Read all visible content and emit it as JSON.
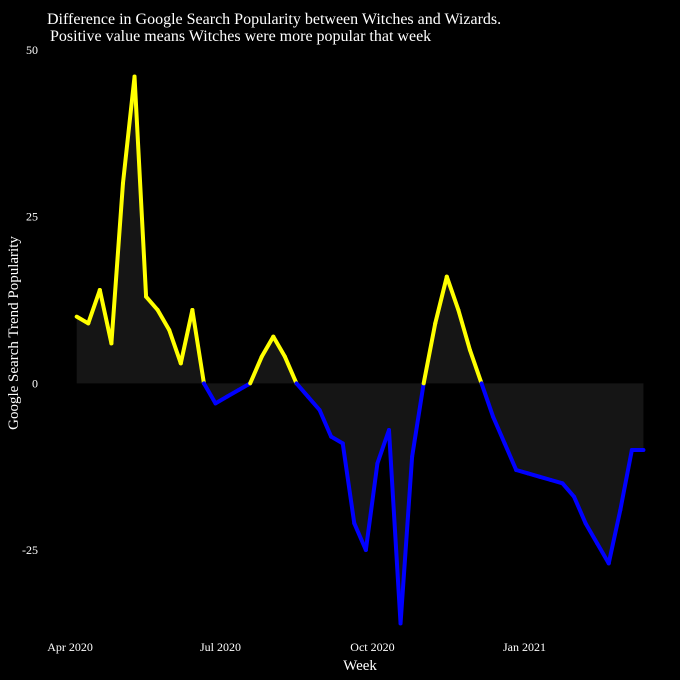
{
  "chart_data": {
    "type": "line",
    "title_lines": [
      "Difference in Google Search Popularity between Witches and Wizards.",
      "Positive value means Witches were more popular that week"
    ],
    "xlabel": "Week",
    "ylabel": "Google Search Trend Popularity",
    "x_ticks": [
      {
        "date": "2020-04-01",
        "label": "Apr 2020"
      },
      {
        "date": "2020-07-01",
        "label": "Jul 2020"
      },
      {
        "date": "2020-10-01",
        "label": "Oct 2020"
      },
      {
        "date": "2021-01-01",
        "label": "Jan 2021"
      }
    ],
    "y_ticks": [
      50,
      25,
      0,
      -25
    ],
    "ylim": [
      -40,
      50
    ],
    "xlim": [
      "2020-03-15",
      "2021-03-21"
    ],
    "grid": false,
    "positive_color": "#ffff00",
    "negative_color": "#0000ff",
    "area_color": "#151515",
    "x": [
      "2020-04-05",
      "2020-04-12",
      "2020-04-19",
      "2020-04-26",
      "2020-05-03",
      "2020-05-10",
      "2020-05-17",
      "2020-05-24",
      "2020-05-31",
      "2020-06-07",
      "2020-06-14",
      "2020-06-21",
      "2020-06-28",
      "2020-07-05",
      "2020-07-12",
      "2020-07-19",
      "2020-07-26",
      "2020-08-02",
      "2020-08-09",
      "2020-08-16",
      "2020-08-23",
      "2020-08-30",
      "2020-09-06",
      "2020-09-13",
      "2020-09-20",
      "2020-09-27",
      "2020-10-04",
      "2020-10-11",
      "2020-10-18",
      "2020-10-25",
      "2020-11-01",
      "2020-11-08",
      "2020-11-15",
      "2020-11-22",
      "2020-11-29",
      "2020-12-06",
      "2020-12-13",
      "2020-12-20",
      "2020-12-27",
      "2021-01-03",
      "2021-01-10",
      "2021-01-17",
      "2021-01-24",
      "2021-01-31",
      "2021-02-07",
      "2021-02-14",
      "2021-02-21",
      "2021-02-28",
      "2021-03-07",
      "2021-03-14"
    ],
    "y": [
      10,
      9,
      14,
      6,
      30,
      46,
      13,
      11,
      8,
      3,
      11,
      0,
      -3,
      -2,
      -1,
      0,
      4,
      7,
      4,
      0,
      -2,
      -4,
      -8,
      -9,
      -21,
      -25,
      -12,
      -7,
      -36,
      -11,
      0,
      9,
      16,
      11,
      5,
      0,
      -5,
      -9,
      -13,
      -13.5,
      -14,
      -14.5,
      -15,
      -17,
      -21,
      -24,
      -27,
      -19,
      -10,
      -10
    ]
  }
}
